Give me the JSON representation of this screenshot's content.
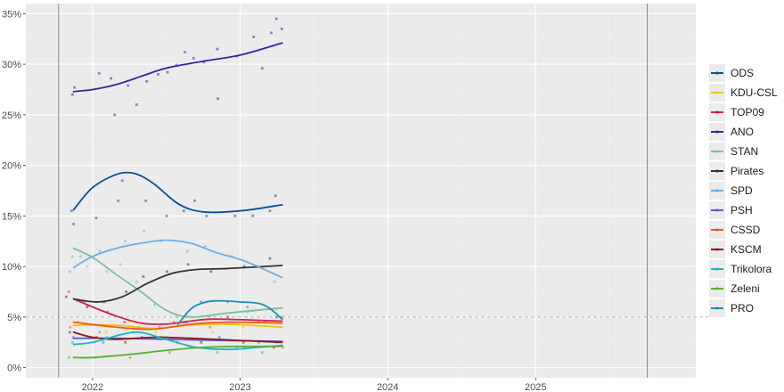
{
  "chart_data": {
    "type": "scatter",
    "title": "",
    "xlabel": "",
    "ylabel": "",
    "x_ticks": [
      "2022",
      "2023",
      "2024",
      "2025"
    ],
    "y_ticks": [
      "0%",
      "5%",
      "10%",
      "15%",
      "20%",
      "25%",
      "30%",
      "35%"
    ],
    "xlim": [
      "2021-07-20",
      "2026-02-01"
    ],
    "ylim": [
      -1,
      36
    ],
    "grid": true,
    "legend_position": "right",
    "threshold": 5,
    "vlines": [
      "2021-10-09",
      "2025-10-04"
    ],
    "series": [
      {
        "name": "ODS",
        "color": "#0a4f9c",
        "trend": [
          [
            "2021-11-15",
            15.6
          ],
          [
            "2022-01-01",
            17.8
          ],
          [
            "2022-03-01",
            19.1
          ],
          [
            "2022-04-15",
            19.2
          ],
          [
            "2022-06-01",
            18.2
          ],
          [
            "2022-08-01",
            16.2
          ],
          [
            "2022-10-01",
            15.4
          ],
          [
            "2023-01-01",
            15.5
          ],
          [
            "2023-04-15",
            16.1
          ]
        ],
        "points": [
          [
            "2021-11-10",
            15.5
          ],
          [
            "2021-11-15",
            14.2
          ],
          [
            "2022-01-10",
            14.8
          ],
          [
            "2022-03-01",
            16.5
          ],
          [
            "2022-03-20",
            18.5
          ],
          [
            "2022-05-15",
            16.5
          ],
          [
            "2022-07-01",
            15.0
          ],
          [
            "2022-08-10",
            15.5
          ],
          [
            "2022-09-15",
            16.5
          ],
          [
            "2022-10-10",
            15.0
          ],
          [
            "2022-12-15",
            15.0
          ],
          [
            "2023-02-10",
            15.0
          ],
          [
            "2023-03-20",
            15.5
          ],
          [
            "2023-04-05",
            17.0
          ]
        ]
      },
      {
        "name": "KDU-CSL",
        "color": "#f5c400",
        "trend": [
          [
            "2021-11-15",
            4.2
          ],
          [
            "2022-03-01",
            4.2
          ],
          [
            "2022-06-01",
            3.9
          ],
          [
            "2022-09-01",
            4.2
          ],
          [
            "2022-12-01",
            4.3
          ],
          [
            "2023-04-15",
            4.0
          ]
        ],
        "points": [
          [
            "2021-12-01",
            4.5
          ],
          [
            "2022-02-10",
            3.5
          ],
          [
            "2022-04-15",
            4.5
          ],
          [
            "2022-06-15",
            3.5
          ],
          [
            "2022-09-01",
            5.0
          ],
          [
            "2022-11-01",
            3.5
          ],
          [
            "2023-01-15",
            4.0
          ],
          [
            "2023-04-15",
            4.5
          ]
        ]
      },
      {
        "name": "TOP09",
        "color": "#c8264f",
        "trend": [
          [
            "2021-11-15",
            6.8
          ],
          [
            "2022-01-01",
            6.0
          ],
          [
            "2022-03-01",
            5.1
          ],
          [
            "2022-05-01",
            4.4
          ],
          [
            "2022-07-01",
            4.3
          ],
          [
            "2022-09-01",
            4.6
          ],
          [
            "2022-11-01",
            4.8
          ],
          [
            "2023-04-15",
            4.6
          ]
        ],
        "points": [
          [
            "2021-11-10",
            7.5
          ],
          [
            "2021-12-15",
            6.5
          ],
          [
            "2022-02-20",
            5.5
          ],
          [
            "2022-04-01",
            4.5
          ],
          [
            "2022-06-20",
            4.0
          ],
          [
            "2022-09-01",
            4.5
          ],
          [
            "2022-12-15",
            5.0
          ],
          [
            "2023-03-15",
            4.5
          ]
        ]
      },
      {
        "name": "ANO",
        "color": "#3c249e",
        "trend": [
          [
            "2021-11-15",
            27.3
          ],
          [
            "2022-01-01",
            27.5
          ],
          [
            "2022-03-01",
            28.0
          ],
          [
            "2022-05-01",
            28.8
          ],
          [
            "2022-07-01",
            29.6
          ],
          [
            "2022-10-01",
            30.3
          ],
          [
            "2023-01-01",
            30.9
          ],
          [
            "2023-04-15",
            32.1
          ]
        ],
        "points": [
          [
            "2021-11-10",
            27.0
          ],
          [
            "2021-11-15",
            27.7
          ],
          [
            "2022-01-15",
            29.1
          ],
          [
            "2022-02-20",
            28.6
          ],
          [
            "2022-03-01",
            25.0
          ],
          [
            "2022-04-01",
            27.9
          ],
          [
            "2022-04-20",
            26.0
          ],
          [
            "2022-05-15",
            28.3
          ],
          [
            "2022-06-10",
            29.0
          ],
          [
            "2022-07-01",
            29.2
          ],
          [
            "2022-08-01",
            29.9
          ],
          [
            "2022-08-20",
            31.2
          ],
          [
            "2022-09-10",
            30.6
          ],
          [
            "2022-10-01",
            30.2
          ],
          [
            "2022-11-01",
            31.5
          ],
          [
            "2022-11-05",
            26.6
          ],
          [
            "2023-01-01",
            30.8
          ],
          [
            "2023-02-10",
            32.7
          ],
          [
            "2023-03-01",
            29.6
          ],
          [
            "2023-04-01",
            33.1
          ],
          [
            "2023-04-05",
            34.5
          ],
          [
            "2023-04-25",
            33.5
          ]
        ]
      },
      {
        "name": "STAN",
        "color": "#7bbf98",
        "trend": [
          [
            "2021-11-15",
            11.8
          ],
          [
            "2022-01-01",
            10.9
          ],
          [
            "2022-03-01",
            9.2
          ],
          [
            "2022-05-01",
            7.5
          ],
          [
            "2022-07-01",
            5.7
          ],
          [
            "2022-09-01",
            5.0
          ],
          [
            "2022-12-01",
            5.4
          ],
          [
            "2023-04-15",
            5.9
          ]
        ],
        "points": [
          [
            "2021-11-10",
            11.0
          ],
          [
            "2021-12-15",
            10.0
          ],
          [
            "2022-02-01",
            9.5
          ],
          [
            "2022-03-15",
            10.2
          ],
          [
            "2022-04-20",
            8.5
          ],
          [
            "2022-06-01",
            6.2
          ],
          [
            "2022-08-01",
            5.0
          ],
          [
            "2022-10-15",
            5.0
          ],
          [
            "2023-01-15",
            5.5
          ],
          [
            "2023-04-01",
            5.8
          ]
        ]
      },
      {
        "name": "Pirates",
        "color": "#333333",
        "trend": [
          [
            "2021-11-15",
            6.8
          ],
          [
            "2022-01-15",
            6.5
          ],
          [
            "2022-03-15",
            7.0
          ],
          [
            "2022-05-15",
            8.3
          ],
          [
            "2022-07-15",
            9.3
          ],
          [
            "2022-09-15",
            9.7
          ],
          [
            "2022-12-01",
            9.8
          ],
          [
            "2023-04-15",
            10.1
          ]
        ],
        "points": [
          [
            "2021-11-10",
            7.0
          ],
          [
            "2022-01-01",
            6.0
          ],
          [
            "2022-02-10",
            6.5
          ],
          [
            "2022-04-01",
            7.5
          ],
          [
            "2022-05-20",
            9.0
          ],
          [
            "2022-07-15",
            9.5
          ],
          [
            "2022-09-01",
            10.2
          ],
          [
            "2022-11-01",
            9.5
          ],
          [
            "2023-01-20",
            10.0
          ],
          [
            "2023-03-20",
            10.8
          ]
        ]
      },
      {
        "name": "SPD",
        "color": "#6aaee2",
        "trend": [
          [
            "2021-11-15",
            9.9
          ],
          [
            "2022-01-01",
            11.0
          ],
          [
            "2022-03-01",
            11.8
          ],
          [
            "2022-05-01",
            12.3
          ],
          [
            "2022-07-01",
            12.6
          ],
          [
            "2022-09-01",
            12.3
          ],
          [
            "2022-11-01",
            11.4
          ],
          [
            "2023-01-15",
            10.5
          ],
          [
            "2023-04-15",
            8.9
          ]
        ],
        "points": [
          [
            "2021-11-10",
            9.5
          ],
          [
            "2021-12-15",
            11.0
          ],
          [
            "2022-02-01",
            11.5
          ],
          [
            "2022-04-01",
            12.5
          ],
          [
            "2022-05-15",
            13.5
          ],
          [
            "2022-07-01",
            12.5
          ],
          [
            "2022-09-01",
            11.5
          ],
          [
            "2022-10-20",
            12.0
          ],
          [
            "2022-12-20",
            11.0
          ],
          [
            "2023-02-15",
            10.0
          ],
          [
            "2023-04-05",
            8.5
          ]
        ]
      },
      {
        "name": "PSH",
        "color": "#5b5bd6",
        "trend": [
          [
            "2021-11-15",
            2.9
          ],
          [
            "2022-03-01",
            2.9
          ],
          [
            "2022-07-01",
            2.8
          ],
          [
            "2022-11-01",
            2.7
          ],
          [
            "2023-04-15",
            2.6
          ]
        ],
        "points": [
          [
            "2021-11-10",
            3.0
          ],
          [
            "2022-02-01",
            2.5
          ],
          [
            "2022-05-01",
            3.0
          ],
          [
            "2022-08-01",
            2.5
          ],
          [
            "2022-11-15",
            3.0
          ],
          [
            "2023-03-01",
            2.5
          ]
        ]
      },
      {
        "name": "CSSD",
        "color": "#ec5b1d",
        "trend": [
          [
            "2021-11-15",
            4.5
          ],
          [
            "2022-03-01",
            4.0
          ],
          [
            "2022-06-01",
            3.8
          ],
          [
            "2022-09-01",
            4.3
          ],
          [
            "2022-12-01",
            4.5
          ],
          [
            "2023-04-15",
            4.4
          ]
        ],
        "points": [
          [
            "2021-11-20",
            4.0
          ],
          [
            "2022-02-01",
            3.5
          ],
          [
            "2022-05-01",
            4.0
          ],
          [
            "2022-08-01",
            4.5
          ],
          [
            "2022-11-01",
            4.0
          ],
          [
            "2023-02-15",
            4.5
          ],
          [
            "2023-04-10",
            5.0
          ]
        ]
      },
      {
        "name": "KSCM",
        "color": "#8b1a1a",
        "trend": [
          [
            "2021-11-15",
            3.5
          ],
          [
            "2022-01-01",
            3.0
          ],
          [
            "2022-03-01",
            2.8
          ],
          [
            "2022-06-01",
            3.0
          ],
          [
            "2022-09-01",
            2.9
          ],
          [
            "2023-04-15",
            2.5
          ]
        ],
        "points": [
          [
            "2021-11-10",
            3.5
          ],
          [
            "2022-01-15",
            3.0
          ],
          [
            "2022-04-01",
            2.5
          ],
          [
            "2022-07-01",
            3.0
          ],
          [
            "2022-10-01",
            2.5
          ],
          [
            "2023-01-20",
            2.5
          ],
          [
            "2023-04-01",
            2.0
          ]
        ]
      },
      {
        "name": "Trikolora",
        "color": "#17b8c4",
        "trend": [
          [
            "2021-11-15",
            2.3
          ],
          [
            "2022-01-01",
            2.5
          ],
          [
            "2022-04-15",
            3.5
          ],
          [
            "2022-07-01",
            2.8
          ],
          [
            "2022-09-15",
            2.0
          ],
          [
            "2022-12-01",
            1.8
          ],
          [
            "2023-02-15",
            2.0
          ],
          [
            "2023-04-15",
            2.2
          ]
        ],
        "points": [
          [
            "2021-11-10",
            2.5
          ],
          [
            "2022-02-01",
            3.0
          ],
          [
            "2022-04-15",
            3.5
          ],
          [
            "2022-06-15",
            3.0
          ],
          [
            "2022-09-01",
            2.0
          ],
          [
            "2022-11-01",
            1.5
          ],
          [
            "2023-01-01",
            2.0
          ],
          [
            "2023-03-01",
            1.5
          ],
          [
            "2023-04-15",
            2.5
          ]
        ]
      },
      {
        "name": "Zeleni",
        "color": "#5ab031",
        "trend": [
          [
            "2021-11-15",
            1.0
          ],
          [
            "2022-01-01",
            1.0
          ],
          [
            "2022-04-01",
            1.3
          ],
          [
            "2022-07-01",
            1.7
          ],
          [
            "2022-10-01",
            2.0
          ],
          [
            "2023-01-01",
            2.1
          ],
          [
            "2023-04-15",
            2.1
          ]
        ],
        "points": [
          [
            "2021-11-10",
            1.0
          ],
          [
            "2022-01-15",
            1.0
          ],
          [
            "2022-04-15",
            1.0
          ],
          [
            "2022-07-15",
            1.5
          ],
          [
            "2022-10-15",
            2.0
          ],
          [
            "2023-01-15",
            2.0
          ],
          [
            "2023-04-15",
            2.0
          ]
        ]
      },
      {
        "name": "PRO",
        "color": "#1a8fb3",
        "trend": [
          [
            "2022-08-01",
            4.3
          ],
          [
            "2022-09-01",
            5.8
          ],
          [
            "2022-10-01",
            6.4
          ],
          [
            "2022-11-01",
            6.6
          ],
          [
            "2023-01-01",
            6.5
          ],
          [
            "2023-03-01",
            6.2
          ],
          [
            "2023-04-15",
            4.8
          ]
        ],
        "points": [
          [
            "2022-08-15",
            4.5
          ],
          [
            "2022-10-01",
            6.5
          ],
          [
            "2022-12-01",
            6.5
          ],
          [
            "2023-02-01",
            6.0
          ],
          [
            "2023-04-10",
            5.0
          ]
        ]
      }
    ]
  }
}
